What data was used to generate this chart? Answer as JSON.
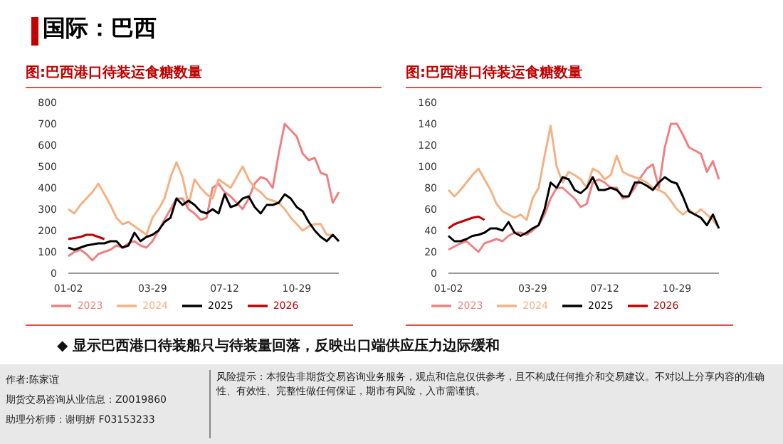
{
  "chart_data": [
    {
      "type": "line",
      "title": "图:巴西港口待装运食糖数量",
      "annotations": [
        "国际：巴西"
      ],
      "categories": [
        "01-02",
        null,
        null,
        null,
        null,
        null,
        null,
        null,
        null,
        null,
        null,
        null,
        null,
        null,
        "03-29",
        null,
        null,
        null,
        null,
        null,
        null,
        null,
        null,
        null,
        null,
        null,
        "07-12",
        null,
        null,
        null,
        null,
        null,
        null,
        null,
        null,
        null,
        null,
        null,
        "10-29",
        null,
        null,
        null,
        null,
        null,
        null,
        null
      ],
      "series": [
        {
          "name": "2023",
          "color": "#f08080",
          "values": [
            80,
            100,
            110,
            90,
            60,
            90,
            100,
            110,
            130,
            120,
            140,
            150,
            130,
            120,
            150,
            200,
            250,
            300,
            350,
            350,
            300,
            280,
            250,
            260,
            400,
            420,
            380,
            360,
            330,
            300,
            350,
            420,
            450,
            440,
            400,
            560,
            700,
            670,
            640,
            560,
            530,
            540,
            470,
            460,
            330,
            380
          ]
        },
        {
          "name": "2024",
          "color": "#f4b183",
          "values": [
            300,
            280,
            320,
            350,
            380,
            420,
            370,
            320,
            260,
            230,
            240,
            220,
            200,
            180,
            260,
            300,
            350,
            450,
            520,
            450,
            320,
            440,
            400,
            370,
            350,
            440,
            420,
            400,
            450,
            500,
            440,
            400,
            380,
            350,
            340,
            330,
            300,
            260,
            230,
            200,
            220,
            230,
            230,
            180,
            180,
            150
          ]
        },
        {
          "name": "2025",
          "color": "#000000",
          "values": [
            120,
            110,
            120,
            130,
            135,
            140,
            140,
            150,
            150,
            120,
            130,
            190,
            150,
            170,
            180,
            200,
            240,
            260,
            350,
            320,
            340,
            320,
            290,
            280,
            300,
            280,
            370,
            310,
            320,
            350,
            360,
            310,
            280,
            320,
            320,
            330,
            370,
            350,
            310,
            290,
            240,
            200,
            170,
            150,
            180,
            150
          ]
        },
        {
          "name": "2026",
          "color": "#c00000",
          "values": [
            160,
            165,
            170,
            180,
            180,
            170,
            160,
            null,
            null,
            null,
            null,
            null,
            null,
            null,
            null,
            null,
            null,
            null,
            null,
            null,
            null,
            null,
            null,
            null,
            null,
            null,
            null,
            null,
            null,
            null,
            null,
            null,
            null,
            null,
            null,
            null,
            null,
            null,
            null,
            null,
            null,
            null,
            null,
            null,
            null,
            null
          ]
        }
      ],
      "ylim": [
        0,
        800
      ],
      "yticks": [
        0,
        100,
        200,
        300,
        400,
        500,
        600,
        700,
        800
      ],
      "legend": "bottom",
      "marker": "none",
      "line_style": "solid"
    },
    {
      "type": "line",
      "title": "图:巴西港口待装运食糖数量",
      "annotations": [
        "◆ 显示巴西港口待装船只与待装量回落，反映出口端供应压力边际缓和",
        "作者:陈家谊",
        "期货交易咨询从业信息：Z0019860",
        "助理分析师：谢明妍 F03153233",
        "风险提示：本报告非期货交易咨询业务服务，观点和信息仅供参考，且不构成任何推介和交易建议。不对以上分享内容的准确性、有效性、完整性做任何保证，期市有风险，入市需谨慎。"
      ],
      "categories": [
        "01-02",
        null,
        null,
        null,
        null,
        null,
        null,
        null,
        null,
        null,
        null,
        null,
        null,
        null,
        "03-29",
        null,
        null,
        null,
        null,
        null,
        null,
        null,
        null,
        null,
        null,
        null,
        "07-12",
        null,
        null,
        null,
        null,
        null,
        null,
        null,
        null,
        null,
        null,
        null,
        "10-29",
        null,
        null,
        null,
        null,
        null,
        null,
        null
      ],
      "series": [
        {
          "name": "2023",
          "color": "#f08080",
          "values": [
            22,
            25,
            28,
            30,
            25,
            20,
            28,
            30,
            32,
            30,
            35,
            38,
            38,
            36,
            40,
            45,
            55,
            70,
            80,
            80,
            75,
            70,
            62,
            65,
            85,
            88,
            85,
            80,
            80,
            70,
            72,
            80,
            90,
            98,
            102,
            80,
            118,
            140,
            140,
            130,
            118,
            115,
            112,
            95,
            105,
            88
          ]
        },
        {
          "name": "2024",
          "color": "#f4b183",
          "values": [
            78,
            72,
            78,
            85,
            92,
            98,
            88,
            78,
            65,
            58,
            55,
            52,
            55,
            50,
            70,
            80,
            110,
            138,
            100,
            85,
            95,
            92,
            88,
            80,
            98,
            95,
            88,
            92,
            110,
            95,
            92,
            90,
            88,
            85,
            80,
            78,
            75,
            68,
            60,
            55,
            60,
            55,
            60,
            55,
            50,
            42
          ]
        },
        {
          "name": "2025",
          "color": "#000000",
          "values": [
            35,
            30,
            30,
            32,
            35,
            36,
            38,
            42,
            42,
            40,
            48,
            38,
            35,
            38,
            42,
            45,
            60,
            85,
            80,
            90,
            88,
            78,
            75,
            80,
            90,
            78,
            78,
            80,
            78,
            72,
            72,
            85,
            85,
            82,
            78,
            85,
            90,
            86,
            84,
            72,
            58,
            55,
            52,
            45,
            55,
            42
          ]
        },
        {
          "name": "2026",
          "color": "#c00000",
          "values": [
            42,
            46,
            48,
            50,
            52,
            53,
            50,
            null,
            null,
            null,
            null,
            null,
            null,
            null,
            null,
            null,
            null,
            null,
            null,
            null,
            null,
            null,
            null,
            null,
            null,
            null,
            null,
            null,
            null,
            null,
            null,
            null,
            null,
            null,
            null,
            null,
            null,
            null,
            null,
            null,
            null,
            null,
            null,
            null,
            null,
            null
          ]
        }
      ],
      "ylim": [
        0,
        160
      ],
      "yticks": [
        0,
        20,
        40,
        60,
        80,
        100,
        120,
        140,
        160
      ],
      "legend": "bottom",
      "marker": "none",
      "line_style": "solid"
    }
  ]
}
